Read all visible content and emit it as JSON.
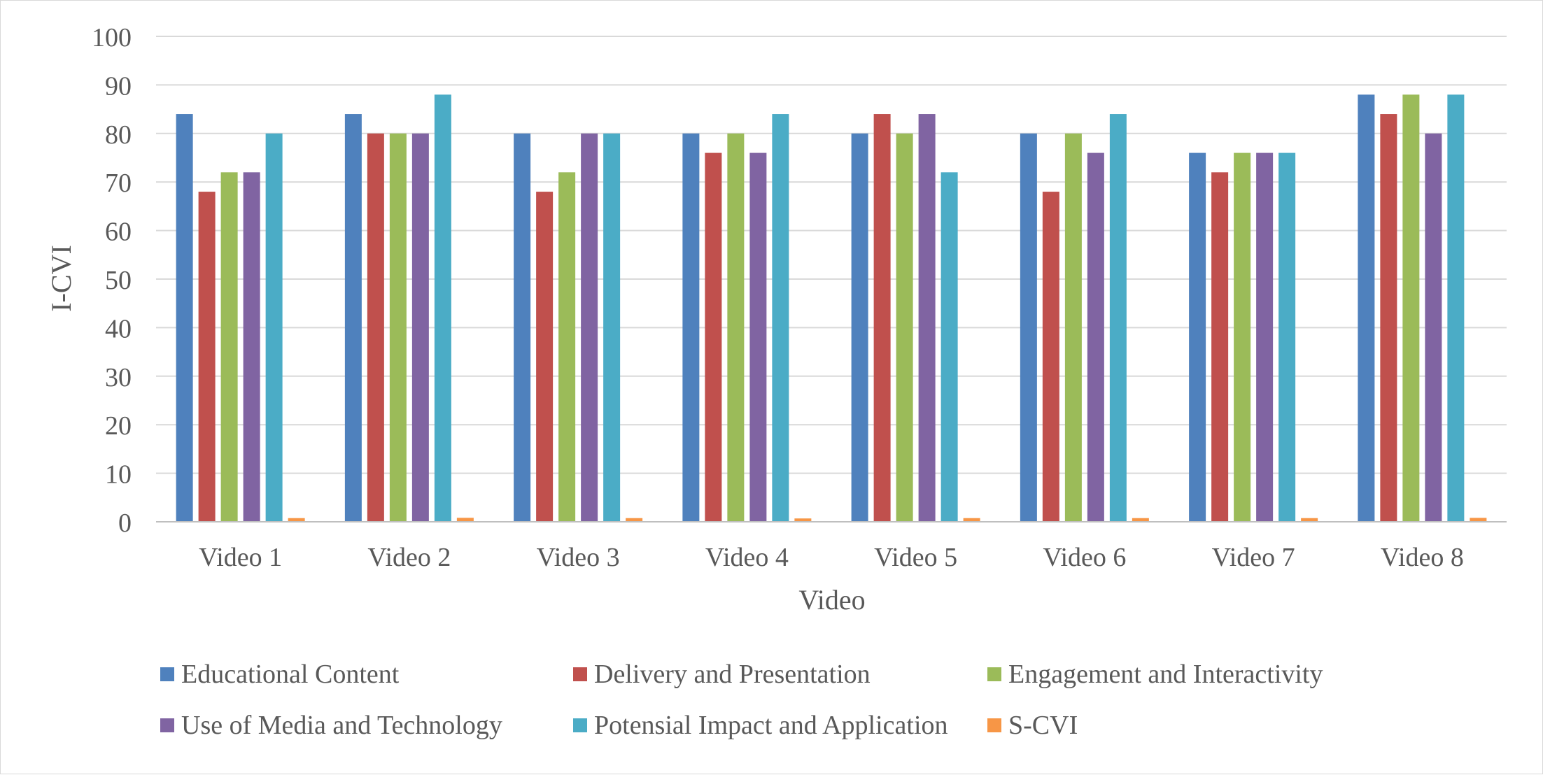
{
  "chart_data": {
    "type": "bar",
    "title": "",
    "xlabel": "Video",
    "ylabel": "I-CVI",
    "ylim": [
      0,
      100
    ],
    "yticks": [
      0,
      10,
      20,
      30,
      40,
      50,
      60,
      70,
      80,
      90,
      100
    ],
    "categories": [
      "Video 1",
      "Video 2",
      "Video 3",
      "Video 4",
      "Video 5",
      "Video 6",
      "Video 7",
      "Video 8"
    ],
    "grid": true,
    "legend_position": "bottom",
    "series": [
      {
        "name": "Educational Content",
        "color": "#4F81BD",
        "values": [
          84,
          84,
          80,
          80,
          80,
          80,
          76,
          88
        ]
      },
      {
        "name": "Delivery and Presentation",
        "color": "#C0504D",
        "values": [
          68,
          80,
          68,
          76,
          84,
          68,
          72,
          84
        ]
      },
      {
        "name": "Engagement and Interactivity",
        "color": "#9BBB59",
        "values": [
          72,
          80,
          72,
          80,
          80,
          80,
          76,
          88
        ]
      },
      {
        "name": "Use of Media and Technology",
        "color": "#8064A2",
        "values": [
          72,
          80,
          80,
          76,
          84,
          76,
          76,
          80
        ]
      },
      {
        "name": "Potensial Impact and Application",
        "color": "#4BACC6",
        "values": [
          80,
          88,
          80,
          84,
          72,
          84,
          76,
          88
        ]
      },
      {
        "name": "S-CVI",
        "color": "#F79646",
        "values": [
          0.76,
          0.82,
          0.76,
          0.69,
          0.76,
          0.76,
          0.76,
          0.81
        ]
      }
    ]
  }
}
